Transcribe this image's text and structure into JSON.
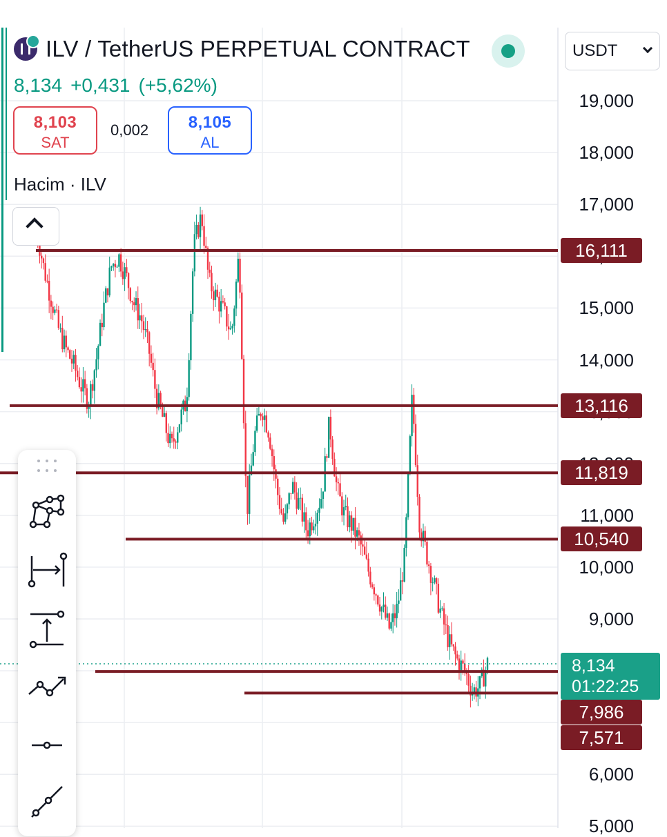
{
  "header": {
    "symbol_title": "ILV / TetherUS PERPETUAL CONTRACT",
    "last_price": "8,134",
    "change": "+0,431",
    "change_pct": "(+5,62%)"
  },
  "trade": {
    "sell_price": "8,103",
    "sell_label": "SAT",
    "spread": "0,002",
    "buy_price": "8,105",
    "buy_label": "AL"
  },
  "indicator": {
    "volume_label": "Hacim · ILV"
  },
  "currency": {
    "selected": "USDT"
  },
  "icons": {
    "logo": "ilv-logo-icon",
    "status": "market-open-dot-icon",
    "collapse": "chevron-up-icon",
    "dropdown": "chevron-down-icon",
    "tools": [
      "pattern-tool-icon",
      "date-range-icon",
      "price-range-icon",
      "path-tool-icon",
      "horizontal-ray-icon",
      "trend-line-icon"
    ]
  },
  "colors": {
    "up": "#089981",
    "down": "#f23645",
    "level_line": "#7a1c25",
    "last_price_tag": "#1aa088",
    "sell": "#e0434e",
    "buy": "#2962ff"
  },
  "chart_data": {
    "type": "candlestick",
    "price_axis": {
      "ticks": [
        "19,000",
        "18,000",
        "17,000",
        "16,000",
        "15,000",
        "14,000",
        "13,000",
        "12,000",
        "11,000",
        "10,000",
        "9,000",
        "6,000",
        "5,000"
      ],
      "ylim": [
        4900,
        20000
      ]
    },
    "horizontal_levels": [
      {
        "label": "16,111",
        "value": 16.111
      },
      {
        "label": "13,116",
        "value": 13.116
      },
      {
        "label": "11,819",
        "value": 11.819
      },
      {
        "label": "10,540",
        "value": 10.54
      },
      {
        "label": "7,986",
        "value": 7.986
      },
      {
        "label": "7,571",
        "value": 7.571
      }
    ],
    "last_price": {
      "value": 8.134,
      "label": "8,134",
      "countdown": "01:22:25"
    },
    "price_path_approx": [
      16.6,
      15.8,
      15.2,
      14.6,
      14.2,
      13.9,
      13.5,
      13.2,
      14.0,
      15.0,
      15.8,
      16.0,
      15.6,
      15.1,
      14.8,
      14.2,
      13.3,
      12.8,
      12.3,
      12.8,
      13.2,
      16.2,
      16.8,
      15.5,
      15.2,
      14.9,
      14.5,
      16.1,
      11.0,
      12.5,
      13.1,
      12.6,
      11.5,
      10.8,
      11.6,
      11.2,
      10.7,
      11.0,
      11.4,
      12.8,
      11.5,
      11.0,
      10.8,
      10.5,
      10.0,
      9.6,
      9.2,
      8.8,
      9.2,
      10.2,
      13.3,
      10.8,
      10.2,
      9.6,
      9.0,
      8.5,
      8.2,
      8.0,
      7.6,
      7.7,
      8.134
    ]
  }
}
